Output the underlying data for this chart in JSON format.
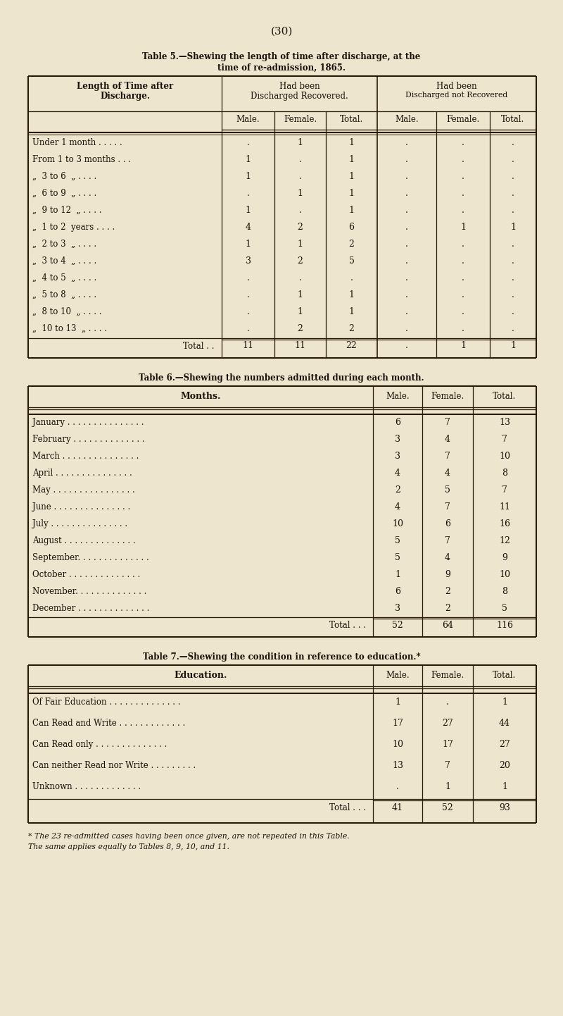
{
  "bg_color": "#ede5ce",
  "text_color": "#1a1008",
  "line_color": "#2a1a08",
  "page_number": "(30)",
  "table5": {
    "title_line1": "Table 5.—Shewing the length of time after discharge, at the",
    "title_line2": "time of re-admission, 1865.",
    "col_header1": "Length of Time after",
    "col_header2": "Discharge.",
    "group1_header1": "Had been",
    "group1_header2": "Discharged Recovered.",
    "group2_header1": "Had been",
    "group2_header2": "Discharged not Recovered",
    "sub_headers": [
      "Male.",
      "Female.",
      "Total.",
      "Male.",
      "Female.",
      "Total."
    ],
    "rows": [
      [
        "Under 1 month . . . . .",
        ".",
        "1",
        "1",
        ".",
        ".",
        "."
      ],
      [
        "From 1 to 3 months . . .",
        "1",
        ".",
        "1",
        ".",
        ".",
        "."
      ],
      [
        "„  3 to 6  „ . . . .",
        "1",
        ".",
        "1",
        ".",
        ".",
        "."
      ],
      [
        "„  6 to 9  „ . . . .",
        ".",
        "1",
        "1",
        ".",
        ".",
        "."
      ],
      [
        "„  9 to 12  „ . . . .",
        "1",
        ".",
        "1",
        ".",
        ".",
        "."
      ],
      [
        "„  1 to 2  years . . . .",
        "4",
        "2",
        "6",
        ".",
        "1",
        "1"
      ],
      [
        "„  2 to 3  „ . . . .",
        "1",
        "1",
        "2",
        ".",
        ".",
        "."
      ],
      [
        "„  3 to 4  „ . . . .",
        "3",
        "2",
        "5",
        ".",
        ".",
        "."
      ],
      [
        "„  4 to 5  „ . . . .",
        ".",
        ".",
        ".",
        ".",
        ".",
        "."
      ],
      [
        "„  5 to 8  „ . . . .",
        ".",
        "1",
        "1",
        ".",
        ".",
        "."
      ],
      [
        "„  8 to 10  „ . . . .",
        ".",
        "1",
        "1",
        ".",
        ".",
        "."
      ],
      [
        "„  10 to 13  „ . . . .",
        ".",
        "2",
        "2",
        ".",
        ".",
        "."
      ],
      [
        "Total . .",
        "11",
        "11",
        "22",
        ".",
        "1",
        "1"
      ]
    ]
  },
  "table6": {
    "title_line1": "Table 6.—Shewing the numbers admitted during each month.",
    "col_header": "Months.",
    "sub_headers": [
      "Male.",
      "Female.",
      "Total."
    ],
    "rows": [
      [
        "January . . . . . . . . . . . . . . .",
        "6",
        "7",
        "13"
      ],
      [
        "February . . . . . . . . . . . . . .",
        "3",
        "4",
        "7"
      ],
      [
        "March . . . . . . . . . . . . . . .",
        "3",
        "7",
        "10"
      ],
      [
        "April . . . . . . . . . . . . . . .",
        "4",
        "4",
        "8"
      ],
      [
        "May . . . . . . . . . . . . . . . .",
        "2",
        "5",
        "7"
      ],
      [
        "June . . . . . . . . . . . . . . .",
        "4",
        "7",
        "11"
      ],
      [
        "July . . . . . . . . . . . . . . .",
        "10",
        "6",
        "16"
      ],
      [
        "August . . . . . . . . . . . . . .",
        "5",
        "7",
        "12"
      ],
      [
        "September. . . . . . . . . . . . . .",
        "5",
        "4",
        "9"
      ],
      [
        "October . . . . . . . . . . . . . .",
        "1",
        "9",
        "10"
      ],
      [
        "November. . . . . . . . . . . . . .",
        "6",
        "2",
        "8"
      ],
      [
        "December . . . . . . . . . . . . . .",
        "3",
        "2",
        "5"
      ],
      [
        "Total . . .",
        "52",
        "64",
        "116"
      ]
    ]
  },
  "table7": {
    "title_line1": "Table 7.—Shewing the condition in reference to education.*",
    "col_header": "Education.",
    "sub_headers": [
      "Male.",
      "Female.",
      "Total."
    ],
    "rows": [
      [
        "Of Fair Education . . . . . . . . . . . . . .",
        "1",
        ".",
        "1"
      ],
      [
        "Can Read and Write . . . . . . . . . . . . .",
        "17",
        "27",
        "44"
      ],
      [
        "Can Read only . . . . . . . . . . . . . .",
        "10",
        "17",
        "27"
      ],
      [
        "Can neither Read nor Write . . . . . . . . .",
        "13",
        "7",
        "20"
      ],
      [
        "Unknown . . . . . . . . . . . . .",
        ".",
        "1",
        "1"
      ],
      [
        "Total . . .",
        "41",
        "52",
        "93"
      ]
    ],
    "footnote_line1": "* The 23 re-admitted cases having been once given, are not repeated in this Table.",
    "footnote_line2": "The same applies equally to Tables 8, 9, 10, and 11."
  }
}
